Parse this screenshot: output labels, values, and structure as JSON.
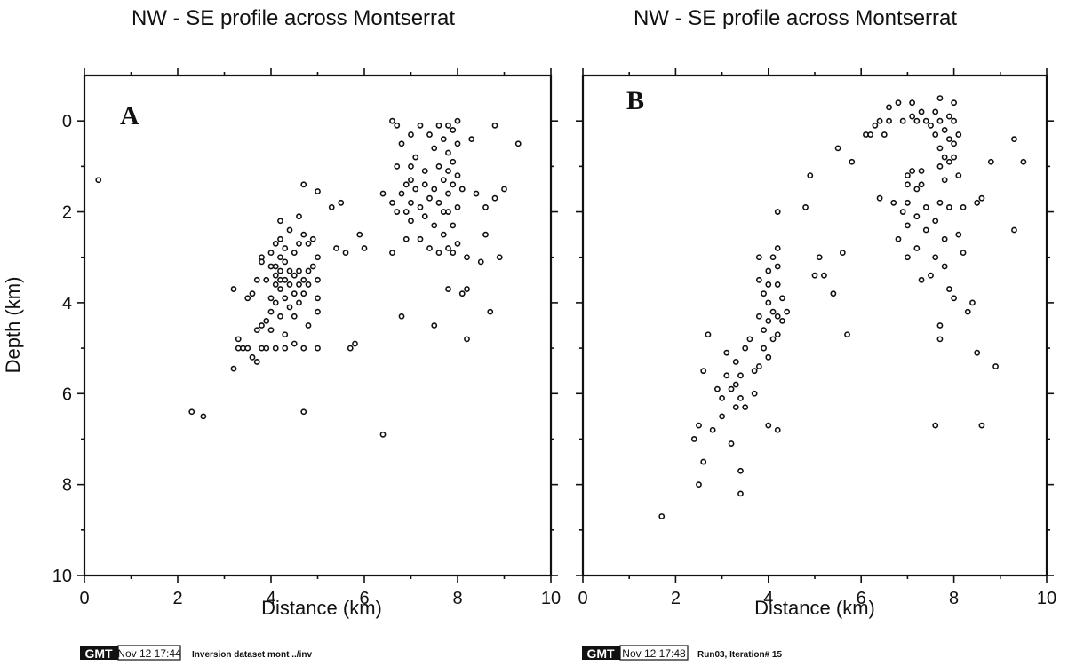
{
  "chart_data": [
    {
      "type": "scatter",
      "panel_label": "A",
      "title": "NW - SE profile across Montserrat",
      "xlabel": "Distance (km)",
      "ylabel": "Depth (km)",
      "xlim": [
        0,
        10
      ],
      "ylim": [
        10,
        -1
      ],
      "y_inverted": true,
      "xticks": [
        "0",
        "2",
        "4",
        "6",
        "8",
        "10"
      ],
      "yticks": [
        "0",
        "2",
        "4",
        "6",
        "8",
        "10"
      ],
      "grid": false,
      "stamp": {
        "gmt": "GMT",
        "date": "Nov 12 17:44",
        "note": "Inversion dataset mont ../inv"
      },
      "points": [
        [
          0.3,
          1.3
        ],
        [
          2.3,
          6.4
        ],
        [
          2.55,
          6.5
        ],
        [
          3.2,
          5.45
        ],
        [
          3.2,
          3.7
        ],
        [
          3.3,
          4.8
        ],
        [
          3.3,
          5.0
        ],
        [
          3.4,
          5.0
        ],
        [
          3.5,
          5.0
        ],
        [
          3.5,
          3.9
        ],
        [
          3.6,
          3.8
        ],
        [
          3.6,
          5.2
        ],
        [
          3.7,
          5.3
        ],
        [
          3.7,
          4.6
        ],
        [
          3.7,
          3.5
        ],
        [
          3.8,
          5.0
        ],
        [
          3.8,
          4.5
        ],
        [
          3.8,
          3.1
        ],
        [
          3.8,
          3.0
        ],
        [
          3.9,
          3.5
        ],
        [
          3.9,
          4.4
        ],
        [
          3.9,
          5.0
        ],
        [
          4.0,
          2.9
        ],
        [
          4.0,
          3.2
        ],
        [
          4.0,
          3.9
        ],
        [
          4.0,
          4.2
        ],
        [
          4.0,
          4.6
        ],
        [
          4.1,
          2.7
        ],
        [
          4.1,
          3.2
        ],
        [
          4.1,
          3.4
        ],
        [
          4.1,
          3.6
        ],
        [
          4.1,
          4.0
        ],
        [
          4.1,
          5.0
        ],
        [
          4.2,
          2.2
        ],
        [
          4.2,
          2.6
        ],
        [
          4.2,
          3.0
        ],
        [
          4.2,
          3.3
        ],
        [
          4.2,
          3.5
        ],
        [
          4.2,
          3.7
        ],
        [
          4.2,
          4.3
        ],
        [
          4.3,
          2.8
        ],
        [
          4.3,
          3.1
        ],
        [
          4.3,
          3.5
        ],
        [
          4.3,
          3.9
        ],
        [
          4.3,
          4.7
        ],
        [
          4.3,
          5.0
        ],
        [
          4.4,
          2.4
        ],
        [
          4.4,
          3.3
        ],
        [
          4.4,
          3.6
        ],
        [
          4.4,
          4.1
        ],
        [
          4.5,
          2.9
        ],
        [
          4.5,
          3.4
        ],
        [
          4.5,
          3.8
        ],
        [
          4.5,
          4.3
        ],
        [
          4.5,
          4.9
        ],
        [
          4.6,
          2.7
        ],
        [
          4.6,
          3.3
        ],
        [
          4.6,
          3.6
        ],
        [
          4.6,
          4.0
        ],
        [
          4.6,
          2.1
        ],
        [
          4.7,
          1.4
        ],
        [
          4.7,
          2.5
        ],
        [
          4.7,
          3.5
        ],
        [
          4.7,
          3.8
        ],
        [
          4.7,
          5.0
        ],
        [
          4.7,
          6.4
        ],
        [
          4.8,
          2.7
        ],
        [
          4.8,
          3.3
        ],
        [
          4.8,
          3.6
        ],
        [
          4.8,
          4.5
        ],
        [
          4.9,
          2.6
        ],
        [
          4.9,
          3.2
        ],
        [
          5.0,
          1.55
        ],
        [
          5.0,
          3.0
        ],
        [
          5.0,
          3.5
        ],
        [
          5.0,
          3.9
        ],
        [
          5.0,
          4.2
        ],
        [
          5.0,
          5.0
        ],
        [
          5.3,
          1.9
        ],
        [
          5.4,
          2.8
        ],
        [
          5.5,
          1.8
        ],
        [
          5.6,
          2.9
        ],
        [
          5.7,
          5.0
        ],
        [
          5.8,
          4.9
        ],
        [
          5.9,
          2.5
        ],
        [
          6.0,
          2.8
        ],
        [
          6.4,
          6.9
        ],
        [
          6.4,
          1.6
        ],
        [
          6.6,
          0.0
        ],
        [
          6.6,
          1.8
        ],
        [
          6.6,
          2.9
        ],
        [
          6.7,
          0.1
        ],
        [
          6.7,
          1.0
        ],
        [
          6.7,
          2.0
        ],
        [
          6.8,
          0.5
        ],
        [
          6.8,
          1.6
        ],
        [
          6.8,
          4.3
        ],
        [
          6.9,
          1.4
        ],
        [
          6.9,
          2.0
        ],
        [
          6.9,
          2.6
        ],
        [
          7.0,
          0.3
        ],
        [
          7.0,
          1.0
        ],
        [
          7.0,
          1.3
        ],
        [
          7.0,
          1.8
        ],
        [
          7.0,
          2.2
        ],
        [
          7.1,
          0.8
        ],
        [
          7.1,
          1.5
        ],
        [
          7.2,
          0.1
        ],
        [
          7.2,
          1.9
        ],
        [
          7.2,
          2.6
        ],
        [
          7.3,
          1.1
        ],
        [
          7.3,
          1.4
        ],
        [
          7.3,
          2.1
        ],
        [
          7.4,
          0.3
        ],
        [
          7.4,
          1.7
        ],
        [
          7.4,
          2.8
        ],
        [
          7.5,
          0.6
        ],
        [
          7.5,
          1.5
        ],
        [
          7.5,
          2.3
        ],
        [
          7.5,
          4.5
        ],
        [
          7.6,
          0.1
        ],
        [
          7.6,
          1.0
        ],
        [
          7.6,
          1.8
        ],
        [
          7.6,
          2.9
        ],
        [
          7.7,
          0.4
        ],
        [
          7.7,
          1.3
        ],
        [
          7.7,
          2.0
        ],
        [
          7.7,
          2.5
        ],
        [
          7.8,
          0.1
        ],
        [
          7.8,
          0.7
        ],
        [
          7.8,
          1.1
        ],
        [
          7.8,
          1.6
        ],
        [
          7.8,
          2.0
        ],
        [
          7.8,
          2.8
        ],
        [
          7.8,
          3.7
        ],
        [
          7.9,
          0.2
        ],
        [
          7.9,
          0.9
        ],
        [
          7.9,
          1.4
        ],
        [
          7.9,
          2.3
        ],
        [
          7.9,
          2.9
        ],
        [
          8.0,
          0.0
        ],
        [
          8.0,
          0.5
        ],
        [
          8.0,
          1.2
        ],
        [
          8.0,
          1.9
        ],
        [
          8.0,
          2.7
        ],
        [
          8.1,
          3.8
        ],
        [
          8.1,
          1.5
        ],
        [
          8.2,
          4.8
        ],
        [
          8.2,
          3.7
        ],
        [
          8.2,
          3.0
        ],
        [
          8.3,
          0.4
        ],
        [
          8.4,
          1.6
        ],
        [
          8.5,
          3.1
        ],
        [
          8.6,
          2.5
        ],
        [
          8.6,
          1.9
        ],
        [
          8.7,
          4.2
        ],
        [
          8.8,
          1.7
        ],
        [
          8.9,
          3.0
        ],
        [
          9.0,
          1.5
        ],
        [
          8.8,
          0.1
        ],
        [
          9.3,
          0.5
        ]
      ]
    },
    {
      "type": "scatter",
      "panel_label": "B",
      "title": "NW - SE profile across Montserrat",
      "xlabel": "Distance (km)",
      "ylabel": "",
      "xlim": [
        0,
        10
      ],
      "ylim": [
        10,
        -1
      ],
      "y_inverted": true,
      "xticks": [
        "0",
        "2",
        "4",
        "6",
        "8",
        "10"
      ],
      "yticks": [],
      "grid": false,
      "stamp": {
        "gmt": "GMT",
        "date": "Nov 12 17:48",
        "note": "Run03, Iteration# 15"
      },
      "points": [
        [
          1.7,
          8.7
        ],
        [
          2.4,
          7.0
        ],
        [
          2.5,
          8.0
        ],
        [
          2.5,
          6.7
        ],
        [
          2.6,
          7.5
        ],
        [
          2.6,
          5.5
        ],
        [
          2.7,
          4.7
        ],
        [
          2.8,
          6.8
        ],
        [
          2.9,
          5.9
        ],
        [
          3.0,
          6.5
        ],
        [
          3.0,
          6.1
        ],
        [
          3.1,
          5.6
        ],
        [
          3.1,
          5.1
        ],
        [
          3.2,
          7.1
        ],
        [
          3.2,
          5.9
        ],
        [
          3.3,
          6.3
        ],
        [
          3.3,
          5.8
        ],
        [
          3.3,
          5.3
        ],
        [
          3.4,
          7.7
        ],
        [
          3.4,
          8.2
        ],
        [
          3.4,
          6.1
        ],
        [
          3.4,
          5.6
        ],
        [
          3.5,
          6.3
        ],
        [
          3.5,
          5.0
        ],
        [
          3.6,
          4.8
        ],
        [
          3.7,
          6.0
        ],
        [
          3.7,
          5.5
        ],
        [
          3.8,
          3.5
        ],
        [
          3.8,
          3.0
        ],
        [
          3.8,
          4.3
        ],
        [
          3.8,
          5.4
        ],
        [
          3.9,
          3.8
        ],
        [
          3.9,
          4.6
        ],
        [
          3.9,
          5.0
        ],
        [
          4.0,
          3.3
        ],
        [
          4.0,
          3.6
        ],
        [
          4.0,
          4.0
        ],
        [
          4.0,
          4.4
        ],
        [
          4.0,
          5.2
        ],
        [
          4.0,
          6.7
        ],
        [
          4.1,
          3.0
        ],
        [
          4.1,
          4.2
        ],
        [
          4.1,
          4.8
        ],
        [
          4.2,
          2.8
        ],
        [
          4.2,
          3.2
        ],
        [
          4.2,
          3.6
        ],
        [
          4.2,
          4.3
        ],
        [
          4.2,
          4.7
        ],
        [
          4.2,
          6.8
        ],
        [
          4.3,
          4.4
        ],
        [
          4.3,
          3.9
        ],
        [
          4.4,
          4.2
        ],
        [
          4.2,
          2.0
        ],
        [
          4.8,
          1.9
        ],
        [
          4.9,
          1.2
        ],
        [
          5.0,
          3.4
        ],
        [
          5.1,
          3.0
        ],
        [
          5.2,
          3.4
        ],
        [
          5.4,
          3.8
        ],
        [
          5.6,
          2.9
        ],
        [
          5.7,
          4.7
        ],
        [
          5.5,
          0.6
        ],
        [
          5.8,
          0.9
        ],
        [
          6.1,
          0.3
        ],
        [
          6.2,
          0.3
        ],
        [
          6.3,
          0.1
        ],
        [
          6.4,
          0.0
        ],
        [
          6.4,
          1.7
        ],
        [
          6.5,
          0.3
        ],
        [
          6.6,
          -0.3
        ],
        [
          6.6,
          0.0
        ],
        [
          6.7,
          1.8
        ],
        [
          6.8,
          -0.4
        ],
        [
          6.8,
          2.6
        ],
        [
          6.9,
          0.0
        ],
        [
          6.9,
          2.0
        ],
        [
          7.0,
          1.2
        ],
        [
          7.0,
          1.4
        ],
        [
          7.0,
          1.8
        ],
        [
          7.0,
          2.3
        ],
        [
          7.0,
          3.0
        ],
        [
          7.1,
          -0.1
        ],
        [
          7.1,
          -0.4
        ],
        [
          7.1,
          1.1
        ],
        [
          7.2,
          0.0
        ],
        [
          7.2,
          1.5
        ],
        [
          7.2,
          2.1
        ],
        [
          7.2,
          2.8
        ],
        [
          7.3,
          -0.2
        ],
        [
          7.3,
          1.1
        ],
        [
          7.3,
          1.4
        ],
        [
          7.3,
          3.5
        ],
        [
          7.4,
          0.0
        ],
        [
          7.4,
          1.9
        ],
        [
          7.4,
          2.4
        ],
        [
          7.5,
          0.1
        ],
        [
          7.5,
          3.4
        ],
        [
          7.6,
          -0.2
        ],
        [
          7.6,
          0.3
        ],
        [
          7.6,
          2.2
        ],
        [
          7.6,
          3.0
        ],
        [
          7.6,
          6.7
        ],
        [
          7.7,
          -0.5
        ],
        [
          7.7,
          0.0
        ],
        [
          7.7,
          0.6
        ],
        [
          7.7,
          1.0
        ],
        [
          7.7,
          1.8
        ],
        [
          7.7,
          4.5
        ],
        [
          7.7,
          4.8
        ],
        [
          7.8,
          0.2
        ],
        [
          7.8,
          0.8
        ],
        [
          7.8,
          1.3
        ],
        [
          7.8,
          2.6
        ],
        [
          7.8,
          3.2
        ],
        [
          7.9,
          -0.1
        ],
        [
          7.9,
          0.4
        ],
        [
          7.9,
          0.9
        ],
        [
          7.9,
          1.9
        ],
        [
          7.9,
          3.7
        ],
        [
          8.0,
          -0.4
        ],
        [
          8.0,
          0.0
        ],
        [
          8.0,
          0.5
        ],
        [
          8.0,
          0.8
        ],
        [
          8.0,
          3.9
        ],
        [
          8.1,
          0.3
        ],
        [
          8.1,
          1.2
        ],
        [
          8.1,
          2.5
        ],
        [
          8.2,
          1.9
        ],
        [
          8.2,
          2.9
        ],
        [
          8.3,
          4.2
        ],
        [
          8.4,
          4.0
        ],
        [
          8.5,
          1.8
        ],
        [
          8.5,
          5.1
        ],
        [
          8.6,
          1.7
        ],
        [
          8.6,
          6.7
        ],
        [
          8.8,
          0.9
        ],
        [
          8.9,
          5.4
        ],
        [
          9.3,
          2.4
        ],
        [
          9.3,
          0.4
        ],
        [
          9.5,
          0.9
        ]
      ]
    }
  ]
}
